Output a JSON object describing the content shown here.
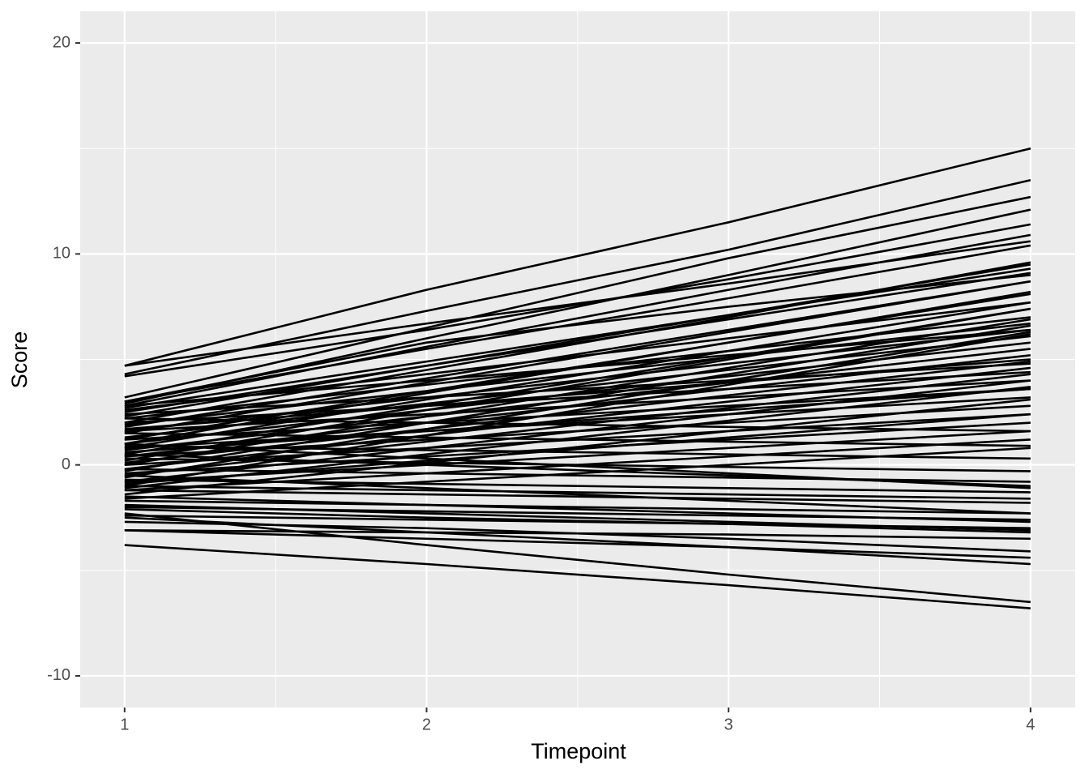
{
  "chart_data": {
    "type": "line",
    "x_label": "Timepoint",
    "y_label": "Score",
    "x": [
      1,
      2,
      3,
      4
    ],
    "xlim": [
      0.853,
      4.148
    ],
    "xticks": [
      1,
      2,
      3,
      4
    ],
    "ylim": [
      -11.5,
      21.5
    ],
    "yticks": [
      -10,
      0,
      10,
      20
    ],
    "grid": true,
    "color": "#000000",
    "series": [
      {
        "values": [
          4.7,
          8.3,
          11.5,
          15.0
        ]
      },
      {
        "values": [
          4.3,
          7.3,
          10.2,
          13.5
        ]
      },
      {
        "values": [
          3.2,
          6.5,
          9.8,
          12.7
        ]
      },
      {
        "values": [
          2.9,
          6.0,
          9.0,
          12.1
        ]
      },
      {
        "values": [
          4.2,
          6.4,
          8.8,
          11.4
        ]
      },
      {
        "values": [
          2.8,
          5.6,
          8.3,
          10.9
        ]
      },
      {
        "values": [
          4.7,
          6.7,
          8.6,
          10.6
        ]
      },
      {
        "values": [
          3.0,
          5.5,
          7.9,
          10.4
        ]
      },
      {
        "values": [
          3.0,
          5.8,
          7.5,
          9.0
        ]
      },
      {
        "values": [
          2.7,
          4.9,
          7.1,
          9.3
        ]
      },
      {
        "values": [
          2.5,
          4.7,
          6.9,
          9.1
        ]
      },
      {
        "values": [
          2.3,
          4.7,
          7.1,
          9.5
        ]
      },
      {
        "values": [
          2.0,
          4.5,
          7.0,
          9.6
        ]
      },
      {
        "values": [
          1.8,
          4.1,
          6.4,
          8.7
        ]
      },
      {
        "values": [
          1.5,
          3.9,
          6.3,
          8.7
        ]
      },
      {
        "values": [
          1.2,
          3.5,
          5.8,
          8.1
        ]
      },
      {
        "values": [
          1.0,
          3.4,
          5.8,
          8.2
        ]
      },
      {
        "values": [
          0.8,
          3.1,
          5.4,
          7.7
        ]
      },
      {
        "values": [
          0.5,
          2.8,
          5.1,
          7.4
        ]
      },
      {
        "values": [
          0.2,
          2.6,
          5.0,
          7.4
        ]
      },
      {
        "values": [
          0.0,
          2.3,
          4.6,
          6.9
        ]
      },
      {
        "values": [
          -0.3,
          2.0,
          4.3,
          6.6
        ]
      },
      {
        "values": [
          -0.6,
          1.7,
          4.0,
          6.3
        ]
      },
      {
        "values": [
          -1.0,
          1.4,
          3.8,
          6.2
        ]
      },
      {
        "values": [
          2.6,
          4.3,
          6.0,
          7.7
        ]
      },
      {
        "values": [
          2.2,
          3.8,
          5.4,
          7.0
        ]
      },
      {
        "values": [
          1.9,
          3.5,
          5.1,
          6.7
        ]
      },
      {
        "values": [
          1.6,
          3.2,
          4.8,
          6.4
        ]
      },
      {
        "values": [
          1.3,
          2.9,
          4.5,
          6.1
        ]
      },
      {
        "values": [
          1.0,
          2.6,
          4.2,
          5.8
        ]
      },
      {
        "values": [
          0.7,
          2.3,
          3.9,
          5.5
        ]
      },
      {
        "values": [
          0.4,
          2.0,
          3.6,
          5.2
        ]
      },
      {
        "values": [
          0.1,
          1.7,
          3.3,
          4.9
        ]
      },
      {
        "values": [
          -0.2,
          1.4,
          3.0,
          4.6
        ]
      },
      {
        "values": [
          -0.5,
          1.1,
          2.7,
          4.3
        ]
      },
      {
        "values": [
          -0.8,
          0.8,
          2.4,
          4.0
        ]
      },
      {
        "values": [
          -1.1,
          0.5,
          2.1,
          3.7
        ]
      },
      {
        "values": [
          -1.4,
          0.1,
          1.6,
          3.1
        ]
      },
      {
        "values": [
          2.4,
          3.2,
          4.0,
          4.8
        ]
      },
      {
        "values": [
          2.0,
          2.8,
          3.6,
          4.4
        ]
      },
      {
        "values": [
          1.6,
          2.4,
          3.2,
          4.0
        ]
      },
      {
        "values": [
          1.2,
          2.0,
          2.8,
          3.6
        ]
      },
      {
        "values": [
          0.8,
          1.6,
          2.4,
          3.2
        ]
      },
      {
        "values": [
          0.4,
          1.2,
          2.0,
          2.8
        ]
      },
      {
        "values": [
          0.0,
          0.8,
          1.6,
          2.4
        ]
      },
      {
        "values": [
          -0.4,
          0.4,
          1.2,
          2.0
        ]
      },
      {
        "values": [
          -0.8,
          0.0,
          0.8,
          1.6
        ]
      },
      {
        "values": [
          -1.2,
          -0.4,
          0.4,
          1.2
        ]
      },
      {
        "values": [
          -1.6,
          -0.8,
          0.0,
          0.8
        ]
      },
      {
        "values": [
          2.2,
          2.0,
          1.8,
          1.6
        ]
      },
      {
        "values": [
          1.5,
          1.3,
          1.1,
          0.9
        ]
      },
      {
        "values": [
          0.9,
          0.7,
          0.5,
          0.3
        ]
      },
      {
        "values": [
          0.3,
          0.1,
          -0.1,
          -0.3
        ]
      },
      {
        "values": [
          -0.2,
          -0.4,
          -0.6,
          -0.8
        ]
      },
      {
        "values": [
          -0.7,
          -0.9,
          -1.1,
          -1.3
        ]
      },
      {
        "values": [
          -1.2,
          -1.4,
          -1.6,
          -1.8
        ]
      },
      {
        "values": [
          -1.7,
          -1.9,
          -2.1,
          -2.3
        ]
      },
      {
        "values": [
          -2.0,
          -2.2,
          -2.4,
          -2.6
        ]
      },
      {
        "values": [
          -1.5,
          -1.9,
          -2.3,
          -2.7
        ]
      },
      {
        "values": [
          -0.5,
          -1.1,
          -1.7,
          -2.3
        ]
      },
      {
        "values": [
          -1.9,
          -2.3,
          -2.7,
          -3.1
        ]
      },
      {
        "values": [
          -2.1,
          -2.5,
          -2.8,
          -3.2
        ]
      },
      {
        "values": [
          1.0,
          0.3,
          -0.4,
          -1.1
        ]
      },
      {
        "values": [
          0.5,
          0.0,
          -0.5,
          -1.0
        ]
      },
      {
        "values": [
          -1.0,
          -1.2,
          -1.4,
          -1.6
        ]
      },
      {
        "values": [
          2.8,
          4.0,
          5.2,
          6.4
        ]
      },
      {
        "values": [
          1.7,
          2.8,
          3.9,
          5.0
        ]
      },
      {
        "values": [
          0.6,
          1.6,
          2.6,
          3.6
        ]
      },
      {
        "values": [
          -0.9,
          0.2,
          1.3,
          2.4
        ]
      },
      {
        "values": [
          -3.8,
          -4.7,
          -5.7,
          -6.8
        ]
      },
      {
        "values": [
          -2.3,
          -3.8,
          -5.2,
          -6.5
        ]
      },
      {
        "values": [
          -2.5,
          -3.2,
          -3.9,
          -4.7
        ]
      },
      {
        "values": [
          -3.1,
          -3.5,
          -3.9,
          -4.4
        ]
      },
      {
        "values": [
          -2.7,
          -3.0,
          -3.5,
          -4.1
        ]
      },
      {
        "values": [
          -3.1,
          -3.2,
          -3.3,
          -3.5
        ]
      },
      {
        "values": [
          -2.4,
          -2.6,
          -2.8,
          -3.0
        ]
      }
    ]
  }
}
